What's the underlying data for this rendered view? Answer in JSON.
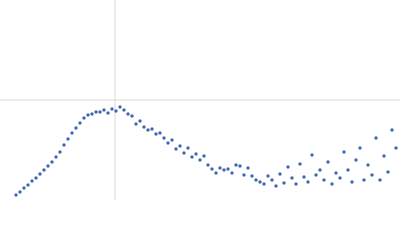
{
  "chart_data": {
    "type": "scatter",
    "color": "#3b65b1",
    "xlim": [
      0,
      400
    ],
    "ylim": [
      0,
      200
    ],
    "xticks": [
      115
    ],
    "yticks": [
      100
    ],
    "grid": true,
    "series": [
      {
        "color": "#3b65b1",
        "x": [
          16,
          20,
          24,
          28,
          32,
          36,
          40,
          44,
          48,
          52,
          56,
          60,
          64,
          68,
          72,
          76,
          80,
          84,
          88,
          92,
          96,
          100,
          104,
          108,
          112,
          116,
          120,
          124,
          128,
          132,
          136,
          140,
          144,
          148,
          152,
          156,
          160,
          164,
          168,
          172,
          176,
          180,
          184,
          188,
          192,
          196,
          200,
          204,
          208,
          212,
          216,
          220,
          224,
          228,
          232,
          236,
          240,
          244,
          248,
          252,
          256,
          260,
          264,
          268,
          272,
          276,
          280,
          284,
          288,
          292,
          296,
          300,
          304,
          308,
          312,
          316,
          320,
          324,
          328,
          332,
          336,
          340,
          344,
          348,
          352,
          356,
          360,
          364,
          368,
          372,
          376,
          380,
          384,
          388,
          392,
          396
        ],
        "values": [
          5,
          8,
          12,
          15,
          19,
          22,
          26,
          30,
          34,
          38,
          43,
          48,
          55,
          61,
          67,
          72,
          77,
          82,
          85,
          86,
          88,
          88,
          90,
          87,
          91,
          89,
          93,
          90,
          86,
          84,
          76,
          79,
          73,
          70,
          71,
          66,
          67,
          62,
          57,
          60,
          51,
          54,
          47,
          52,
          43,
          46,
          40,
          44,
          35,
          31,
          27,
          32,
          30,
          31,
          27,
          35,
          34,
          25,
          32,
          24,
          20,
          18,
          16,
          24,
          20,
          14,
          26,
          17,
          33,
          22,
          16,
          36,
          23,
          18,
          45,
          25,
          30,
          20,
          38,
          16,
          27,
          22,
          48,
          30,
          18,
          40,
          52,
          20,
          35,
          25,
          62,
          20,
          44,
          28,
          70,
          52
        ]
      }
    ]
  }
}
